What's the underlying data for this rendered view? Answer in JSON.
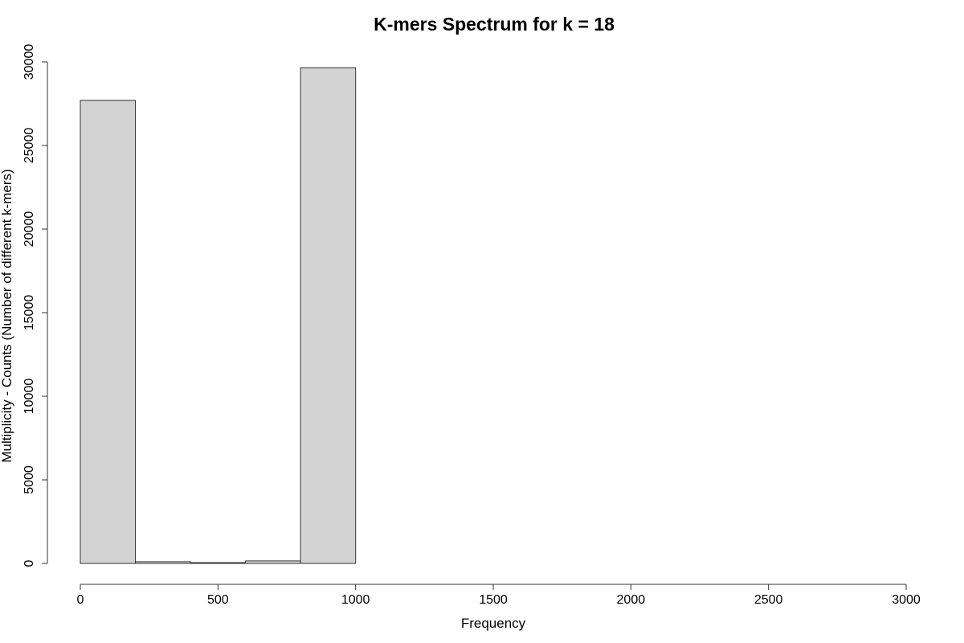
{
  "chart_data": {
    "type": "bar",
    "title": "K-mers Spectrum for k =  18",
    "xlabel": "Frequency",
    "ylabel": "Multiplicity - Counts (Number of different k-mers)",
    "xlim": [
      0,
      3000
    ],
    "ylim": [
      0,
      30000
    ],
    "x_ticks": [
      0,
      500,
      1000,
      1500,
      2000,
      2500,
      3000
    ],
    "y_ticks": [
      0,
      5000,
      10000,
      15000,
      20000,
      25000,
      30000
    ],
    "bin_width": 200,
    "bins": [
      {
        "start": 0,
        "end": 200,
        "value": 27700
      },
      {
        "start": 200,
        "end": 400,
        "value": 100
      },
      {
        "start": 400,
        "end": 600,
        "value": 50
      },
      {
        "start": 600,
        "end": 800,
        "value": 150
      },
      {
        "start": 800,
        "end": 1000,
        "value": 29650
      },
      {
        "start": 1000,
        "end": 1200,
        "value": 0
      },
      {
        "start": 1200,
        "end": 1400,
        "value": 0
      },
      {
        "start": 1400,
        "end": 1600,
        "value": 0
      },
      {
        "start": 1600,
        "end": 1800,
        "value": 0
      },
      {
        "start": 1800,
        "end": 2000,
        "value": 0
      },
      {
        "start": 2000,
        "end": 2200,
        "value": 0
      },
      {
        "start": 2200,
        "end": 2400,
        "value": 0
      },
      {
        "start": 2400,
        "end": 2600,
        "value": 0
      },
      {
        "start": 2600,
        "end": 2800,
        "value": 0
      },
      {
        "start": 2800,
        "end": 3000,
        "value": 0
      }
    ],
    "grid": false,
    "colors": {
      "bar_fill": "#d3d3d3",
      "bar_stroke": "#333333"
    }
  }
}
